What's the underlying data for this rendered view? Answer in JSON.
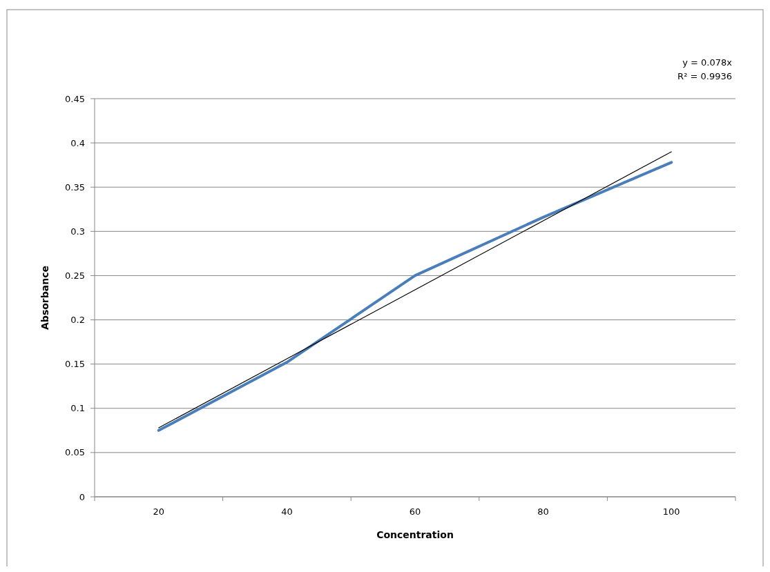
{
  "chart_data": {
    "type": "line",
    "xlabel": "Concentration",
    "ylabel": "Absorbance",
    "categories": [
      "20",
      "40",
      "60",
      "80",
      "100"
    ],
    "series": [
      {
        "color": "#4a7ebb",
        "values": [
          0.075,
          0.152,
          0.25,
          0.316,
          0.378
        ]
      },
      {
        "color": "#000000",
        "values": [
          0.078,
          0.156,
          0.234,
          0.312,
          0.39
        ]
      }
    ],
    "ylim": [
      0,
      0.45
    ],
    "yticks": [
      0,
      0.05,
      0.1,
      0.15,
      0.2,
      0.25,
      0.3,
      0.35,
      0.4,
      0.45
    ],
    "grid": "y",
    "marker": "none",
    "annotations": [
      "y = 0.078x",
      "R² = 0.9936"
    ]
  }
}
